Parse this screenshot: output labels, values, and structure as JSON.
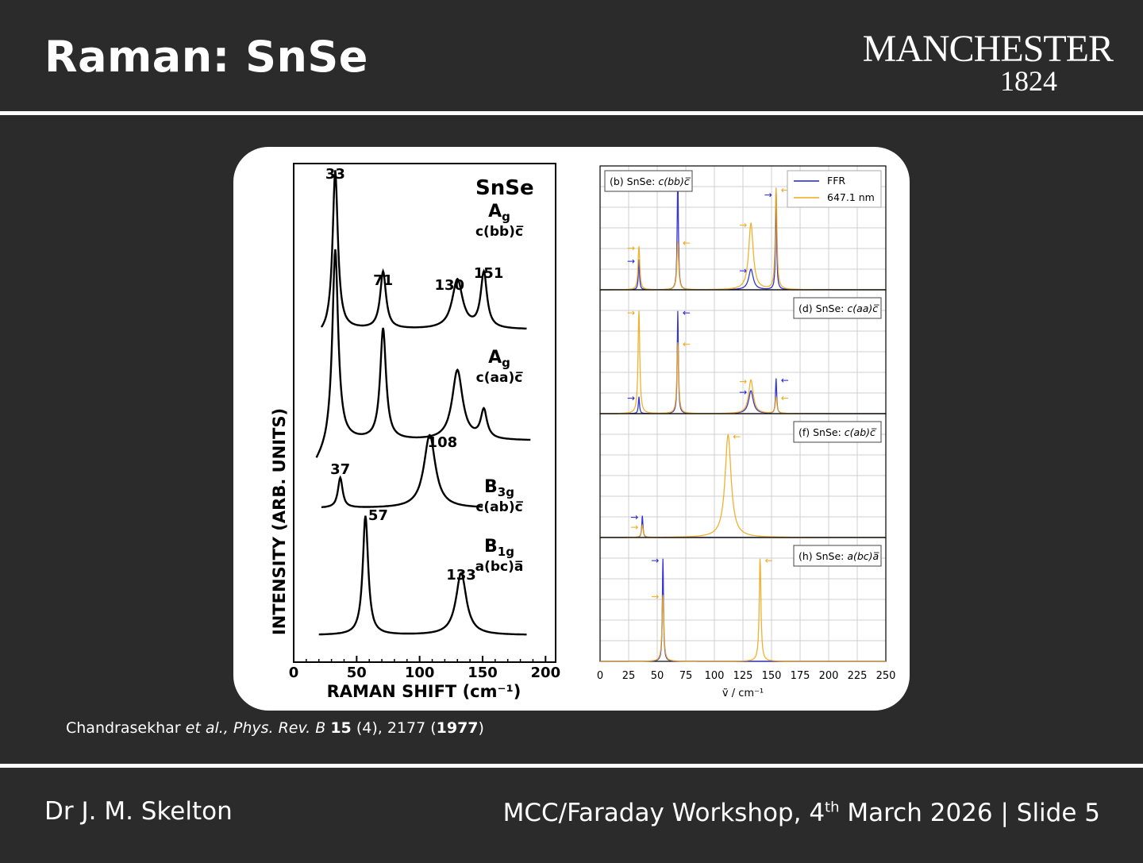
{
  "slide": {
    "title": "Raman: SnSe",
    "logo_line1": "MANCHESTER",
    "logo_line2": "1824",
    "citation_prefix": "Chandrasekhar ",
    "citation_etal": "et al.",
    "citation_journal": ", Phys. Rev. B ",
    "citation_volume": "15",
    "citation_pages": " (4), 2177 (",
    "citation_year": "1977",
    "citation_close": ")",
    "author": "Dr J. M. Skelton",
    "footer_prefix": "MCC/Faraday Workshop, 4",
    "footer_sup": "th",
    "footer_suffix": " March 2026 | Slide 5",
    "colors": {
      "background": "#2b2b2b",
      "ffr": "#1f1fd0",
      "laser": "#f0a818"
    }
  },
  "left_panel": {
    "compound": "SnSe",
    "ylabel": "INTENSITY (ARB. UNITS)",
    "xlabel": "RAMAN SHIFT (cm⁻¹)",
    "xticks": [
      "0",
      "50",
      "100",
      "150",
      "200"
    ],
    "spectra": [
      {
        "symmetry": "Ag",
        "geometry": "c(bb)c̅",
        "peaks": [
          {
            "label": "33",
            "x": 33
          },
          {
            "label": "71",
            "x": 71
          },
          {
            "label": "130",
            "x": 130
          },
          {
            "label": "151",
            "x": 151
          }
        ]
      },
      {
        "symmetry": "Ag",
        "geometry": "c(aa)c̅",
        "peaks": []
      },
      {
        "symmetry": "B3g",
        "geometry": "c(ab)c̅",
        "peaks": [
          {
            "label": "37",
            "x": 37
          },
          {
            "label": "108",
            "x": 108
          }
        ]
      },
      {
        "symmetry": "B1g",
        "geometry": "a(bc)a̅",
        "peaks": [
          {
            "label": "57",
            "x": 57
          },
          {
            "label": "133",
            "x": 133
          }
        ]
      }
    ]
  },
  "chart_data": {
    "type": "line",
    "xlabel": "ṽ / cm⁻¹",
    "xlim": [
      0,
      250
    ],
    "xticks": [
      "0",
      "25",
      "50",
      "75",
      "100",
      "125",
      "150",
      "175",
      "200",
      "225",
      "250"
    ],
    "legend": [
      "FFR",
      "647.1 nm"
    ],
    "legend_placement": "top-right",
    "grid": true,
    "panels": [
      {
        "label_prefix": "(b) SnSe: ",
        "label_geometry": "c(bb)c̅",
        "series": [
          {
            "name": "FFR",
            "peaks": [
              {
                "x": 34,
                "h": 0.25
              },
              {
                "x": 68,
                "h": 0.98
              },
              {
                "x": 132,
                "h": 0.17
              },
              {
                "x": 154,
                "h": 0.8
              }
            ]
          },
          {
            "name": "647.1 nm",
            "peaks": [
              {
                "x": 34,
                "h": 0.36
              },
              {
                "x": 68,
                "h": 0.4
              },
              {
                "x": 132,
                "h": 0.55
              },
              {
                "x": 154,
                "h": 0.84
              }
            ]
          }
        ]
      },
      {
        "label_prefix": "(d) SnSe: ",
        "label_geometry": "c(aa)c̅",
        "series": [
          {
            "name": "FFR",
            "peaks": [
              {
                "x": 34,
                "h": 0.14
              },
              {
                "x": 68,
                "h": 0.85
              },
              {
                "x": 132,
                "h": 0.19
              },
              {
                "x": 154,
                "h": 0.29
              }
            ]
          },
          {
            "name": "647.1 nm",
            "peaks": [
              {
                "x": 34,
                "h": 0.85
              },
              {
                "x": 68,
                "h": 0.59
              },
              {
                "x": 132,
                "h": 0.28
              },
              {
                "x": 154,
                "h": 0.14
              }
            ]
          }
        ]
      },
      {
        "label_prefix": "(f) SnSe: ",
        "label_geometry": "c(ab)c̅",
        "series": [
          {
            "name": "FFR",
            "peaks": [
              {
                "x": 37,
                "h": 0.18
              }
            ]
          },
          {
            "name": "647.1 nm",
            "peaks": [
              {
                "x": 37,
                "h": 0.1
              },
              {
                "x": 112,
                "h": 0.85
              }
            ]
          }
        ]
      },
      {
        "label_prefix": "(h) SnSe: ",
        "label_geometry": "a(bc)a̅",
        "series": [
          {
            "name": "FFR",
            "peaks": [
              {
                "x": 55,
                "h": 0.85
              }
            ]
          },
          {
            "name": "647.1 nm",
            "peaks": [
              {
                "x": 55,
                "h": 0.55
              },
              {
                "x": 140,
                "h": 0.85
              }
            ]
          }
        ]
      }
    ]
  }
}
